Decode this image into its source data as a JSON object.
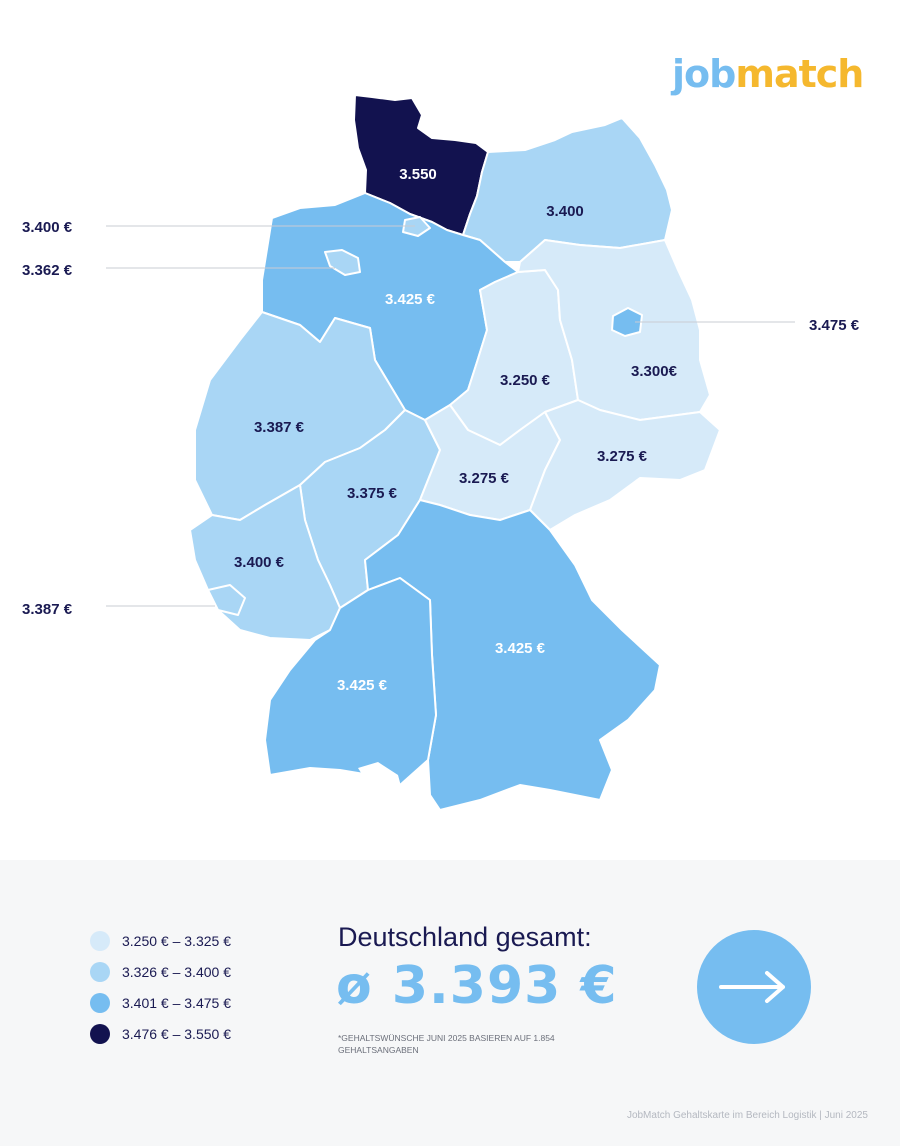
{
  "logo": {
    "part1": "job",
    "part2": "match"
  },
  "colors": {
    "c1": "#d6eaf9",
    "c2": "#a9d6f5",
    "c3": "#76bdf0",
    "c4": "#12124f"
  },
  "regions": [
    {
      "name": "Schleswig-Holstein",
      "value": "3.550",
      "level": 4
    },
    {
      "name": "Mecklenburg-Vorpommern",
      "value": "3.400",
      "level": 2
    },
    {
      "name": "Niedersachsen",
      "value": "3.425 €",
      "level": 3
    },
    {
      "name": "Sachsen-Anhalt",
      "value": "3.250 €",
      "level": 1
    },
    {
      "name": "Brandenburg",
      "value": "3.300€",
      "level": 1
    },
    {
      "name": "Nordrhein-Westfalen",
      "value": "3.387 €",
      "level": 2
    },
    {
      "name": "Hessen",
      "value": "3.375 €",
      "level": 2
    },
    {
      "name": "Thüringen",
      "value": "3.275 €",
      "level": 1
    },
    {
      "name": "Sachsen",
      "value": "3.275 €",
      "level": 1
    },
    {
      "name": "Rheinland-Pfalz",
      "value": "3.400 €",
      "level": 2
    },
    {
      "name": "Bayern",
      "value": "3.425 €",
      "level": 3
    },
    {
      "name": "Baden-Württemberg",
      "value": "3.425 €",
      "level": 3
    }
  ],
  "callouts": [
    {
      "name": "Hamburg",
      "value": "3.400 €",
      "level": 2
    },
    {
      "name": "Bremen",
      "value": "3.362 €",
      "level": 2
    },
    {
      "name": "Berlin",
      "value": "3.475 €",
      "level": 3
    },
    {
      "name": "Saarland",
      "value": "3.387 €",
      "level": 2
    }
  ],
  "legend": [
    {
      "label": "3.250 € – 3.325 €",
      "color": "#d6eaf9"
    },
    {
      "label": "3.326 € – 3.400 €",
      "color": "#a9d6f5"
    },
    {
      "label": "3.401 € – 3.475 €",
      "color": "#76bdf0"
    },
    {
      "label": "3.476 € – 3.550 €",
      "color": "#12124f"
    }
  ],
  "total": {
    "label": "Deutschland gesamt:",
    "value": "ø 3.393 €"
  },
  "footnote": "*Gehaltswünsche Juni 2025 basieren auf 1.854 Gehaltsangaben",
  "credit": "JobMatch Gehaltskarte im Bereich Logistik  | Juni 2025",
  "cta": {
    "icon": "arrow-right-icon"
  }
}
